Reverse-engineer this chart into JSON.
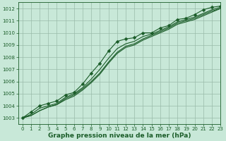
{
  "bg_color": "#c8e8d8",
  "grid_color": "#99bbaa",
  "line_color": "#1a5c28",
  "xlim": [
    -0.5,
    23
  ],
  "ylim": [
    1002.5,
    1012.5
  ],
  "yticks": [
    1003,
    1004,
    1005,
    1006,
    1007,
    1008,
    1009,
    1010,
    1011,
    1012
  ],
  "xticks": [
    0,
    1,
    2,
    3,
    4,
    5,
    6,
    7,
    8,
    9,
    10,
    11,
    12,
    13,
    14,
    15,
    16,
    17,
    18,
    19,
    20,
    21,
    22,
    23
  ],
  "xlabel": "Graphe pression niveau de la mer (hPa)",
  "series": [
    [
      1003.0,
      1003.5,
      1004.0,
      1004.2,
      1004.4,
      1004.9,
      1005.1,
      1005.8,
      1006.7,
      1007.5,
      1008.5,
      1009.3,
      1009.5,
      1009.6,
      1010.0,
      1010.0,
      1010.4,
      1010.6,
      1011.1,
      1011.2,
      1011.5,
      1011.9,
      1012.1,
      1012.2
    ],
    [
      1003.0,
      1003.3,
      1003.8,
      1004.0,
      1004.2,
      1004.7,
      1005.0,
      1005.5,
      1006.2,
      1007.0,
      1007.9,
      1008.7,
      1009.1,
      1009.3,
      1009.7,
      1009.9,
      1010.2,
      1010.5,
      1010.9,
      1011.1,
      1011.3,
      1011.6,
      1011.9,
      1012.1
    ],
    [
      1003.0,
      1003.2,
      1003.6,
      1003.9,
      1004.1,
      1004.6,
      1004.9,
      1005.4,
      1006.0,
      1006.7,
      1007.6,
      1008.4,
      1008.9,
      1009.1,
      1009.5,
      1009.8,
      1010.1,
      1010.4,
      1010.8,
      1011.0,
      1011.2,
      1011.5,
      1011.8,
      1012.0
    ],
    [
      1003.0,
      1003.2,
      1003.6,
      1003.9,
      1004.1,
      1004.5,
      1004.8,
      1005.3,
      1005.9,
      1006.6,
      1007.5,
      1008.3,
      1008.8,
      1009.0,
      1009.4,
      1009.7,
      1010.0,
      1010.3,
      1010.7,
      1010.9,
      1011.1,
      1011.4,
      1011.7,
      1012.0
    ]
  ],
  "marker_size": 2.5,
  "linewidth": 0.8,
  "xlabel_fontsize": 6.5,
  "tick_fontsize": 5.0
}
